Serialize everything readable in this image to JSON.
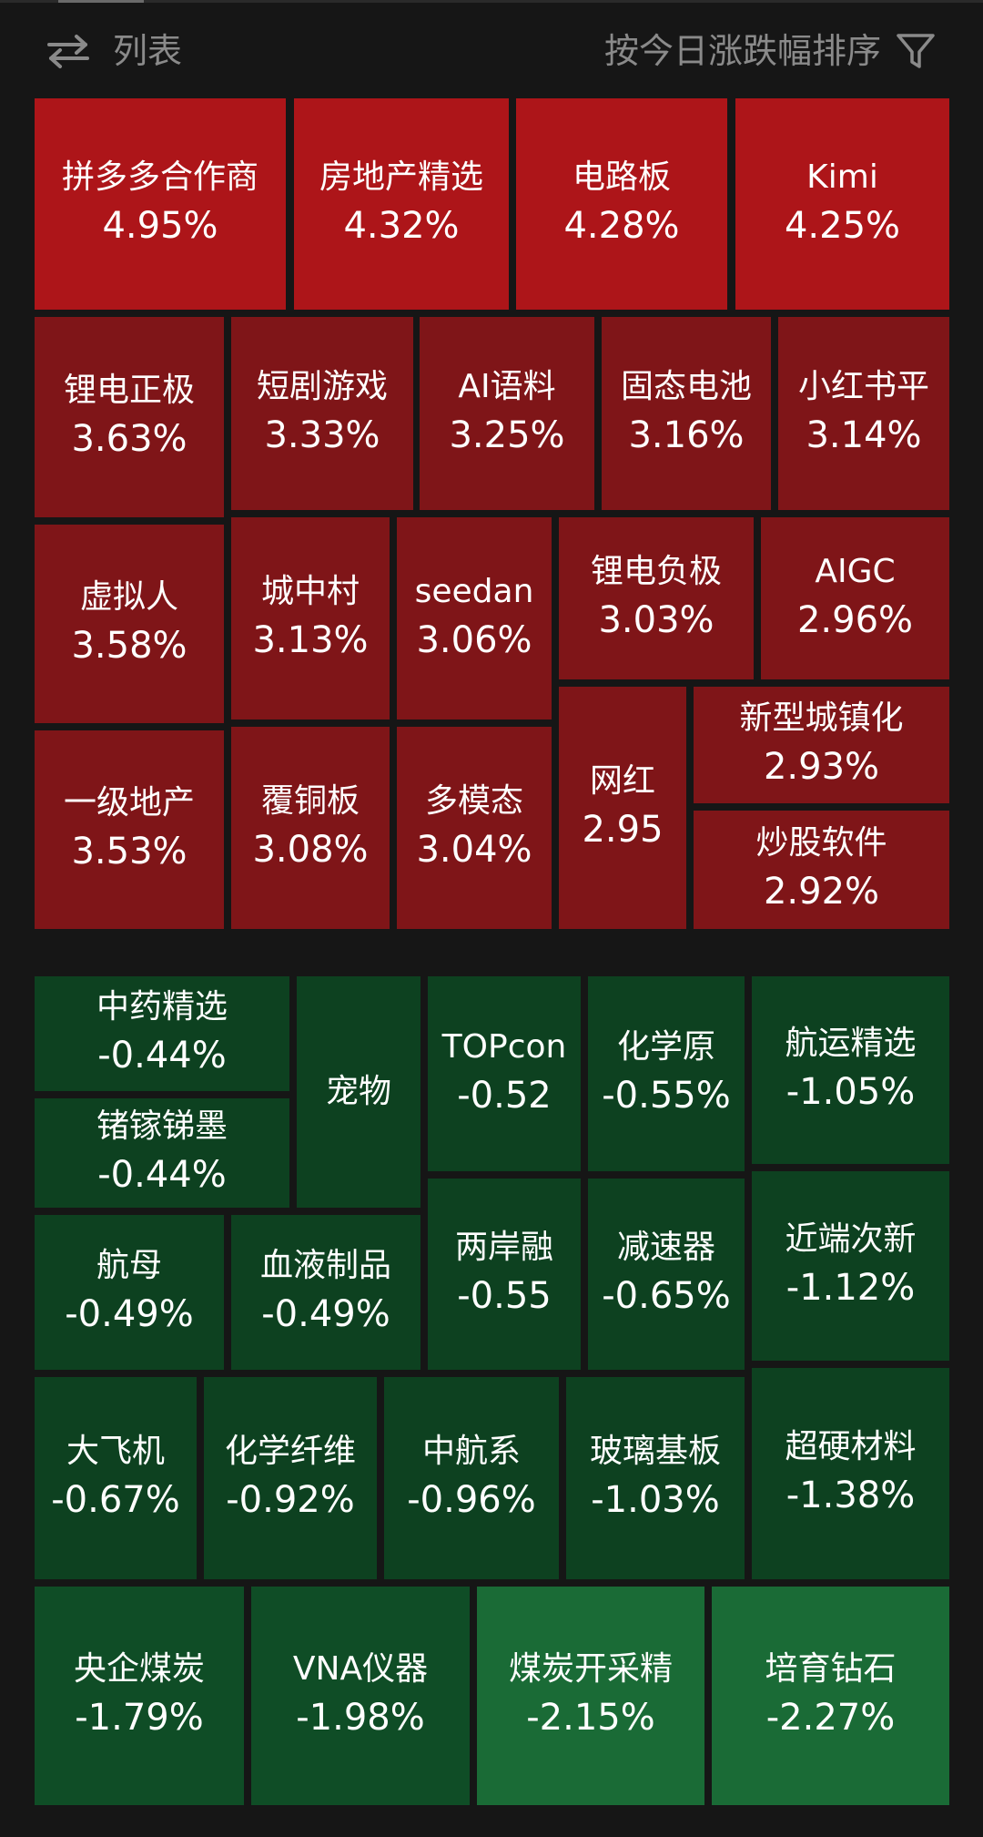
{
  "header": {
    "swap_icon": "swap-arrows-icon",
    "list_label": "列表",
    "sort_label": "按今日涨跌幅排序",
    "filter_icon": "filter-funnel-icon"
  },
  "colors": {
    "strong_up": "#ad1519",
    "up": "#7f1518",
    "down": "#0d4120",
    "strong_down": "#1a6b36",
    "background": "#161616"
  },
  "tiles": [
    {
      "name": "拼多多合作商",
      "change": "4.95%"
    },
    {
      "name": "房地产精选",
      "change": "4.32%"
    },
    {
      "name": "电路板",
      "change": "4.28%"
    },
    {
      "name": "Kimi",
      "change": "4.25%"
    },
    {
      "name": "锂电正极",
      "change": "3.63%"
    },
    {
      "name": "短剧游戏",
      "change": "3.33%"
    },
    {
      "name": "AI语料",
      "change": "3.25%"
    },
    {
      "name": "固态电池",
      "change": "3.16%"
    },
    {
      "name": "小红书平",
      "change": "3.14%"
    },
    {
      "name": "虚拟人",
      "change": "3.58%"
    },
    {
      "name": "城中村",
      "change": "3.13%"
    },
    {
      "name": "seedan",
      "change": "3.06%"
    },
    {
      "name": "锂电负极",
      "change": "3.03%"
    },
    {
      "name": "AIGC",
      "change": "2.96%"
    },
    {
      "name": "新型城镇化",
      "change": "2.93%"
    },
    {
      "name": "一级地产",
      "change": "3.53%"
    },
    {
      "name": "覆铜板",
      "change": "3.08%"
    },
    {
      "name": "多模态",
      "change": "3.04%"
    },
    {
      "name": "网红",
      "change": "2.95"
    },
    {
      "name": "炒股软件",
      "change": "2.92%"
    },
    {
      "name": "中药精选",
      "change": "-0.44%"
    },
    {
      "name": "宠物",
      "change": ""
    },
    {
      "name": "TOPcon",
      "change": "-0.52"
    },
    {
      "name": "化学原",
      "change": "-0.55%"
    },
    {
      "name": "航运精选",
      "change": "-1.05%"
    },
    {
      "name": "锗镓锑墨",
      "change": "-0.44%"
    },
    {
      "name": "航母",
      "change": "-0.49%"
    },
    {
      "name": "血液制品",
      "change": "-0.49%"
    },
    {
      "name": "两岸融",
      "change": "-0.55"
    },
    {
      "name": "减速器",
      "change": "-0.65%"
    },
    {
      "name": "近端次新",
      "change": "-1.12%"
    },
    {
      "name": "大飞机",
      "change": "-0.67%"
    },
    {
      "name": "化学纤维",
      "change": "-0.92%"
    },
    {
      "name": "中航系",
      "change": "-0.96%"
    },
    {
      "name": "玻璃基板",
      "change": "-1.03%"
    },
    {
      "name": "超硬材料",
      "change": "-1.38%"
    },
    {
      "name": "央企煤炭",
      "change": "-1.79%"
    },
    {
      "name": "VNA仪器",
      "change": "-1.98%"
    },
    {
      "name": "煤炭开采精",
      "change": "-2.15%"
    },
    {
      "name": "培育钻石",
      "change": "-2.27%"
    }
  ]
}
